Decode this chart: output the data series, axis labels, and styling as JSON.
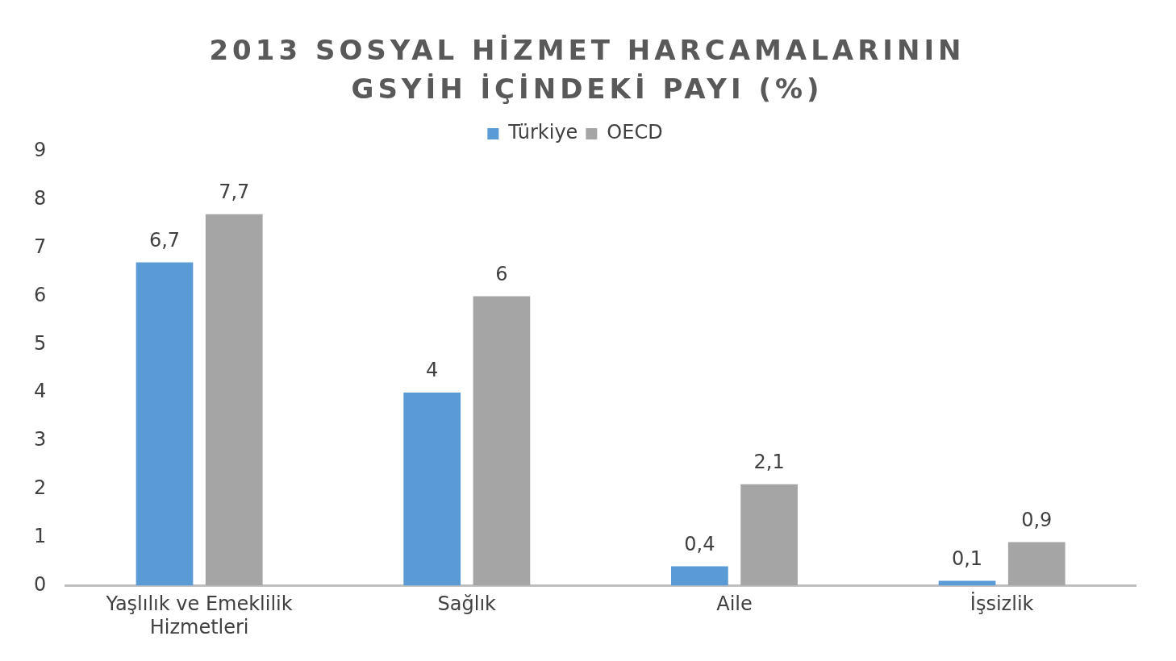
{
  "chart_data": {
    "type": "bar",
    "title": "2013 SOSYAL HİZMET HARCAMALARININ  GSYİH İÇİNDEKİ PAYI (%)",
    "categories": [
      "Yaşlılık ve Emeklilik Hizmetleri",
      "Sağlık",
      "Aile",
      "İşsizlik"
    ],
    "series": [
      {
        "name": "Türkiye",
        "color": "#5b9bd5",
        "values": [
          6.7,
          4,
          0.4,
          0.1
        ],
        "value_labels": [
          "6,7",
          "4",
          "0,4",
          "0,1"
        ]
      },
      {
        "name": "OECD",
        "color": "#a5a5a5",
        "values": [
          7.7,
          6,
          2.1,
          0.9
        ],
        "value_labels": [
          "7,7",
          "6",
          "2,1",
          "0,9"
        ]
      }
    ],
    "ylim": [
      0,
      9
    ],
    "yticks": [
      0,
      1,
      2,
      3,
      4,
      5,
      6,
      7,
      8,
      9
    ],
    "grid": false,
    "legend": "top"
  }
}
